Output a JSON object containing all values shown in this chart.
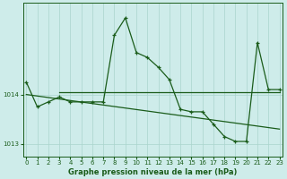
{
  "xlabel": "Graphe pression niveau de la mer (hPa)",
  "background_color": "#ceecea",
  "line_color": "#1a5c1a",
  "grid_color": "#aad4cc",
  "hours": [
    0,
    1,
    2,
    3,
    4,
    5,
    6,
    7,
    8,
    9,
    10,
    11,
    12,
    13,
    14,
    15,
    16,
    17,
    18,
    19,
    20,
    21,
    22,
    23
  ],
  "p_main": [
    1014.25,
    1013.75,
    1013.85,
    1013.95,
    1013.85,
    1013.85,
    1013.85,
    1013.85,
    1015.2,
    1015.55,
    1014.85,
    1014.75,
    1014.55,
    1014.3,
    1013.7,
    1013.65,
    1013.65,
    1013.4,
    1013.15,
    1013.05,
    1013.05,
    1015.05,
    1014.1,
    1014.1
  ],
  "flat_line_x": [
    3,
    23
  ],
  "flat_line_y": [
    1014.05,
    1014.05
  ],
  "slope_line_x": [
    0,
    23
  ],
  "slope_line_y": [
    1014.0,
    1013.3
  ],
  "ylim": [
    1012.75,
    1015.85
  ],
  "yticks": [
    1013,
    1014
  ],
  "xlim": [
    -0.3,
    23.3
  ],
  "xticks": [
    0,
    1,
    2,
    3,
    4,
    5,
    6,
    7,
    8,
    9,
    10,
    11,
    12,
    13,
    14,
    15,
    16,
    17,
    18,
    19,
    20,
    21,
    22,
    23
  ],
  "xlabel_fontsize": 6.0,
  "tick_fontsize": 5.0
}
